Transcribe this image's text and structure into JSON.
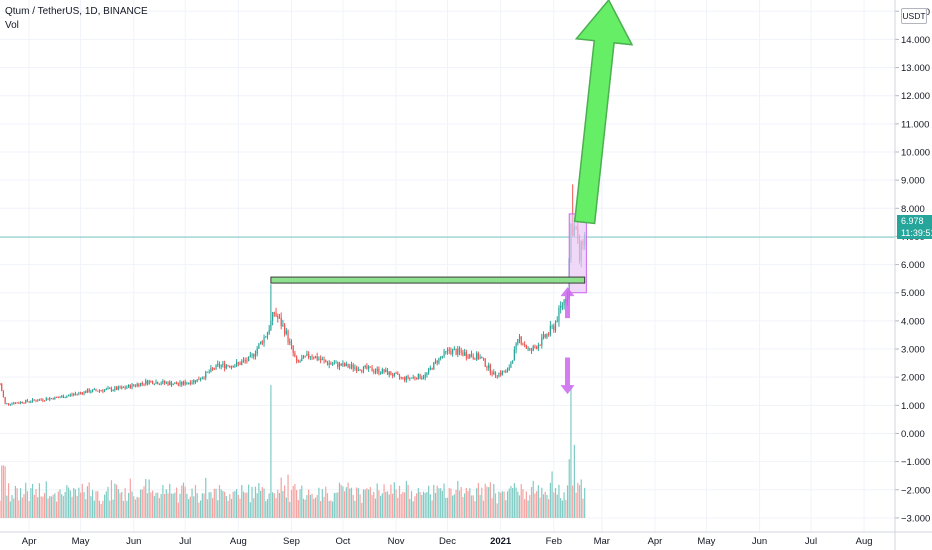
{
  "header": {
    "title": "Qtum / TetherUS, 1D, BINANCE",
    "indicator": "Vol"
  },
  "currency": "USDT",
  "last_price_label": "6.978",
  "countdown_label": "11:39:51",
  "colors": {
    "up": "#26a69a",
    "down": "#ef5350",
    "vol_up": "#80cbc4",
    "vol_down": "#f5a3a1",
    "price_line": "#26a69a",
    "green_arrow": "#66ee66",
    "green_arrow_border": "#4caf50",
    "purple": "#cc66ee",
    "purple_box_fill": "#e9c8f5",
    "support_bar": "#8ee08e"
  },
  "icons": [
    "up-arrow-icon",
    "down-arrow-icon"
  ],
  "chart_data": {
    "type": "candlestick",
    "title": "Qtum / TetherUS, 1D, BINANCE",
    "y_ticks": [
      "15.000",
      "14.000",
      "13.000",
      "12.000",
      "11.000",
      "10.000",
      "9.000",
      "8.000",
      "7.000",
      "6.000",
      "5.000",
      "4.000",
      "3.000",
      "2.000",
      "1.000",
      "0.000",
      "−1.000",
      "−2.000",
      "−3.000"
    ],
    "ylim": [
      -3.5,
      15.4
    ],
    "x_ticks": [
      {
        "label": "Apr",
        "date": "2020-04-01"
      },
      {
        "label": "May",
        "date": "2020-05-01"
      },
      {
        "label": "Jun",
        "date": "2020-06-01"
      },
      {
        "label": "Jul",
        "date": "2020-07-01"
      },
      {
        "label": "Aug",
        "date": "2020-08-01"
      },
      {
        "label": "Sep",
        "date": "2020-09-01"
      },
      {
        "label": "Oct",
        "date": "2020-10-01"
      },
      {
        "label": "Nov",
        "date": "2020-11-01"
      },
      {
        "label": "Dec",
        "date": "2020-12-01"
      },
      {
        "label": "2021",
        "date": "2021-01-01",
        "bold": true
      },
      {
        "label": "Feb",
        "date": "2021-02-01"
      },
      {
        "label": "Mar",
        "date": "2021-03-01"
      },
      {
        "label": "Apr",
        "date": "2021-04-01"
      },
      {
        "label": "May",
        "date": "2021-05-01"
      },
      {
        "label": "Jun",
        "date": "2021-06-01"
      },
      {
        "label": "Jul",
        "date": "2021-07-01"
      },
      {
        "label": "Aug",
        "date": "2021-08-01"
      }
    ],
    "xlim": [
      "2020-03-15",
      "2021-08-19"
    ],
    "last_price": 6.978,
    "price_path": [
      {
        "date": "2020-03-15",
        "price": 1.75
      },
      {
        "date": "2020-03-18",
        "price": 1.05
      },
      {
        "date": "2020-04-01",
        "price": 1.15
      },
      {
        "date": "2020-04-20",
        "price": 1.3
      },
      {
        "date": "2020-05-05",
        "price": 1.5
      },
      {
        "date": "2020-05-25",
        "price": 1.6
      },
      {
        "date": "2020-06-10",
        "price": 1.85
      },
      {
        "date": "2020-06-28",
        "price": 1.75
      },
      {
        "date": "2020-07-08",
        "price": 1.9
      },
      {
        "date": "2020-07-20",
        "price": 2.4
      },
      {
        "date": "2020-07-31",
        "price": 2.45
      },
      {
        "date": "2020-08-08",
        "price": 2.65
      },
      {
        "date": "2020-08-18",
        "price": 3.6
      },
      {
        "date": "2020-08-22",
        "price": 4.3
      },
      {
        "date": "2020-08-28",
        "price": 3.7
      },
      {
        "date": "2020-09-04",
        "price": 2.5
      },
      {
        "date": "2020-09-12",
        "price": 2.8
      },
      {
        "date": "2020-09-22",
        "price": 2.5
      },
      {
        "date": "2020-10-08",
        "price": 2.35
      },
      {
        "date": "2020-10-25",
        "price": 2.2
      },
      {
        "date": "2020-11-05",
        "price": 1.95
      },
      {
        "date": "2020-11-18",
        "price": 2.05
      },
      {
        "date": "2020-11-25",
        "price": 2.6
      },
      {
        "date": "2020-12-02",
        "price": 2.95
      },
      {
        "date": "2020-12-10",
        "price": 2.85
      },
      {
        "date": "2020-12-20",
        "price": 2.7
      },
      {
        "date": "2020-12-28",
        "price": 2.1
      },
      {
        "date": "2021-01-05",
        "price": 2.2
      },
      {
        "date": "2021-01-12",
        "price": 3.4
      },
      {
        "date": "2021-01-18",
        "price": 2.9
      },
      {
        "date": "2021-01-25",
        "price": 3.3
      },
      {
        "date": "2021-02-01",
        "price": 3.8
      },
      {
        "date": "2021-02-06",
        "price": 4.6
      },
      {
        "date": "2021-02-09",
        "price": 5.0
      },
      {
        "date": "2021-02-11",
        "price": 7.4
      },
      {
        "date": "2021-02-14",
        "price": 7.2
      },
      {
        "date": "2021-02-16",
        "price": 6.2
      },
      {
        "date": "2021-02-18",
        "price": 6.9
      },
      {
        "date": "2021-02-19",
        "price": 6.978
      }
    ],
    "notable_highs": [
      {
        "date": "2020-08-20",
        "price": 5.3
      },
      {
        "date": "2021-02-12",
        "price": 8.85
      }
    ],
    "volume_spikes": [
      {
        "date": "2020-08-20",
        "level": 1.0
      },
      {
        "date": "2021-02-11",
        "level": 1.0
      },
      {
        "date": "2021-02-13",
        "level": 0.55
      },
      {
        "date": "2021-01-31",
        "level": 0.35
      }
    ],
    "annotations": {
      "support_line": {
        "price": 5.45,
        "from": "2020-08-20",
        "to": "2021-02-19"
      },
      "consolidation_box": {
        "from": "2021-02-10",
        "to": "2021-02-20",
        "low": 5.0,
        "high": 7.8
      },
      "big_green_arrow": {
        "from": {
          "date": "2021-02-19",
          "price": 7.5
        },
        "to": {
          "date": "2021-03-05",
          "price": 15.4
        }
      },
      "purple_up_arrow": {
        "date": "2021-02-09",
        "from": 4.1,
        "to": 5.2
      },
      "purple_down_arrow": {
        "date": "2021-02-09",
        "from": 2.7,
        "to": 1.4
      }
    }
  }
}
